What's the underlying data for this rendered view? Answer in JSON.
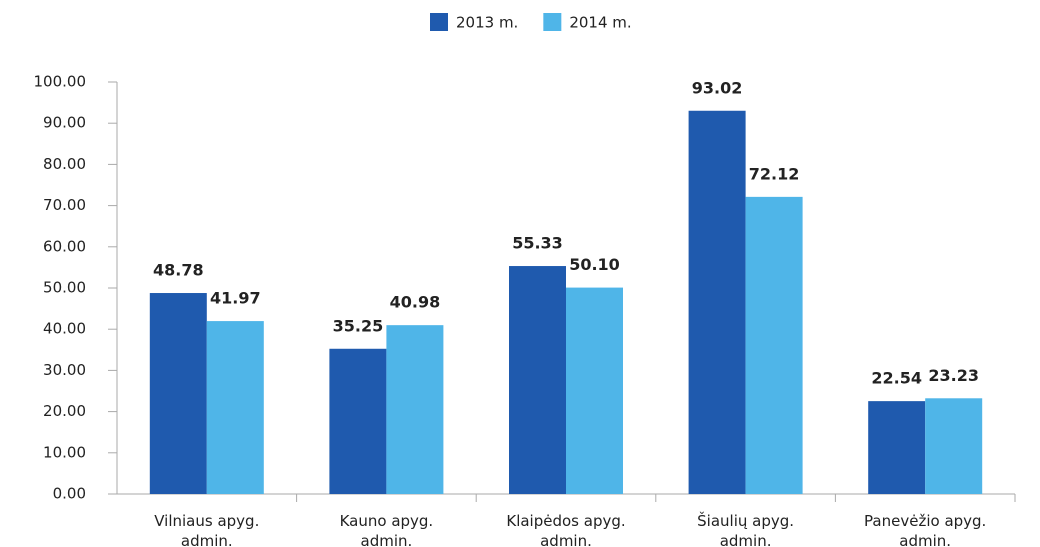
{
  "chart_data": {
    "type": "bar",
    "categories": [
      "Vilniaus apyg. admin.",
      "Kauno apyg. admin.",
      "Klaipėdos apyg. admin.",
      "Šiaulių apyg. admin.",
      "Panevėžio apyg. admin."
    ],
    "series": [
      {
        "name": "2013 m.",
        "color": "#1f5aae",
        "values": [
          48.78,
          35.25,
          55.33,
          93.02,
          22.54
        ],
        "value_labels": [
          "48.78",
          "35.25",
          "55.33",
          "93.02",
          "22.54"
        ]
      },
      {
        "name": "2014 m.",
        "color": "#4fb5e8",
        "values": [
          41.97,
          40.98,
          50.1,
          72.12,
          23.23
        ],
        "value_labels": [
          "41.97",
          "40.98",
          "50.10",
          "72.12",
          "23.23"
        ]
      }
    ],
    "ylim": [
      0,
      100
    ],
    "yticks": [
      {
        "value": 0,
        "label": "0.00"
      },
      {
        "value": 10,
        "label": "10.00"
      },
      {
        "value": 20,
        "label": "20.00"
      },
      {
        "value": 30,
        "label": "30.00"
      },
      {
        "value": 40,
        "label": "40.00"
      },
      {
        "value": 50,
        "label": "50.00"
      },
      {
        "value": 60,
        "label": "60.00"
      },
      {
        "value": 70,
        "label": "70.00"
      },
      {
        "value": 80,
        "label": "80.00"
      },
      {
        "value": 90,
        "label": "90.00"
      },
      {
        "value": 100,
        "label": "100.00"
      }
    ],
    "grid": false,
    "legend": "top"
  }
}
